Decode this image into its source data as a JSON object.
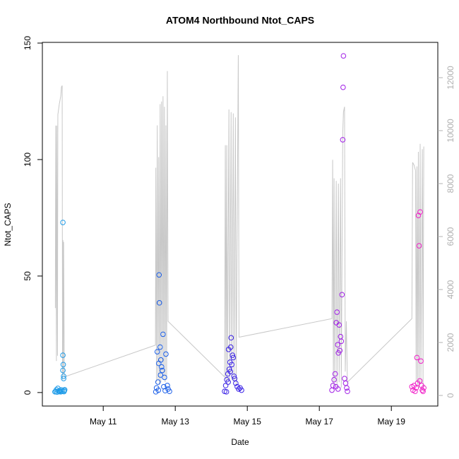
{
  "chart_data": {
    "type": "scatter",
    "title": "ATOM4 Northbound Ntot_CAPS",
    "x_label": "Date",
    "y_label": "Ntot_CAPS",
    "xlim": [
      9.31,
      20.29
    ],
    "xticks": [
      {
        "value": 11,
        "label": "May 11"
      },
      {
        "value": 13,
        "label": "May 13"
      },
      {
        "value": 15,
        "label": "May 15"
      },
      {
        "value": 17,
        "label": "May 17"
      },
      {
        "value": 19,
        "label": "May 19"
      }
    ],
    "ylim": [
      -5.8,
      150.3
    ],
    "yticks": [
      0,
      50,
      100,
      150
    ],
    "y2lim": [
      -400,
      13333
    ],
    "y2ticks": [
      0,
      2000,
      4000,
      6000,
      8000,
      10000,
      12000
    ],
    "y2tick_color": "#b0b0b0",
    "series": [
      {
        "type": "line",
        "axis": "y2",
        "color": "#c8c8c8",
        "x": [
          9.67,
          9.68,
          9.7,
          9.71,
          9.73,
          9.74,
          9.78,
          9.82,
          9.84,
          9.86,
          9.87,
          9.88,
          9.89,
          9.9,
          9.92,
          12.45,
          12.46,
          12.48,
          12.5,
          12.52,
          12.54,
          12.56,
          12.58,
          12.6,
          12.62,
          12.64,
          12.66,
          12.68,
          12.7,
          12.72,
          12.74,
          12.76,
          12.78,
          12.8,
          14.37,
          14.39,
          14.41,
          14.43,
          14.45,
          14.49,
          14.51,
          14.55,
          14.57,
          14.61,
          14.63,
          14.67,
          14.69,
          14.75,
          14.77,
          17.35,
          17.37,
          17.39,
          17.41,
          17.43,
          17.47,
          17.49,
          17.53,
          17.55,
          17.59,
          17.61,
          17.65,
          17.67,
          17.7,
          17.72,
          17.75,
          17.78,
          19.57,
          19.59,
          19.63,
          19.67,
          19.69,
          19.71,
          19.73,
          19.75,
          19.77,
          19.8,
          19.82,
          19.86,
          19.88,
          19.9
        ],
        "values": [
          3300,
          10190,
          1300,
          10190,
          1500,
          10600,
          11000,
          11300,
          11650,
          11700,
          600,
          5870,
          800,
          5800,
          700,
          1900,
          8600,
          500,
          10200,
          600,
          9000,
          400,
          11000,
          500,
          11100,
          700,
          11300,
          600,
          10900,
          500,
          10200,
          600,
          12250,
          2800,
          700,
          9450,
          400,
          9450,
          600,
          10800,
          500,
          10700,
          600,
          10650,
          500,
          10500,
          400,
          12850,
          2200,
          2900,
          8900,
          400,
          8200,
          500,
          8100,
          300,
          8000,
          500,
          8200,
          300,
          9900,
          10700,
          10900,
          900,
          2800,
          500,
          2900,
          8800,
          8700,
          8500,
          500,
          8650,
          400,
          9200,
          300,
          9500,
          500,
          9300,
          300,
          9400
        ]
      },
      {
        "type": "scatter",
        "color": "#1e9be8",
        "x": [
          9.66,
          9.68,
          9.7,
          9.72,
          9.74,
          9.76,
          9.78,
          9.8,
          9.82,
          9.84,
          9.86,
          9.88,
          9.88,
          9.89,
          9.88,
          9.9,
          9.9,
          9.91,
          9.92,
          9.93
        ],
        "values": [
          0.3,
          0.5,
          1.2,
          0.2,
          1.8,
          0.6,
          0.4,
          0.9,
          0.3,
          1.1,
          0.5,
          73,
          16,
          12,
          9.5,
          7,
          6,
          0.4,
          0.8,
          1.2
        ]
      },
      {
        "type": "scatter",
        "color": "#1a5ee8",
        "x": [
          12.46,
          12.5,
          12.52,
          12.54,
          12.55,
          12.56,
          12.58,
          12.6,
          12.62,
          12.64,
          12.66,
          12.7,
          12.74,
          12.78,
          12.84,
          12.48,
          12.53,
          12.59,
          12.68,
          12.72,
          12.8
        ],
        "values": [
          0.3,
          17.5,
          4.5,
          12.5,
          50.5,
          38.5,
          19.5,
          14,
          11,
          9.5,
          25,
          6.5,
          16.5,
          3,
          0.5,
          2,
          1,
          7.5,
          2.5,
          0.8,
          1.5
        ]
      },
      {
        "type": "scatter",
        "color": "#3a22e6",
        "x": [
          14.37,
          14.4,
          14.43,
          14.46,
          14.48,
          14.5,
          14.52,
          14.54,
          14.55,
          14.57,
          14.59,
          14.61,
          14.63,
          14.65,
          14.68,
          14.72,
          14.76,
          14.8,
          14.84,
          14.42,
          14.47,
          14.53
        ],
        "values": [
          0.5,
          3,
          5.5,
          8,
          18.5,
          10,
          13,
          19.5,
          23.5,
          12,
          16,
          15,
          7,
          6,
          4,
          2.5,
          1.5,
          2,
          1,
          0.3,
          4.5,
          9
        ]
      },
      {
        "type": "scatter",
        "color": "#a01ee6",
        "x": [
          17.35,
          17.38,
          17.41,
          17.44,
          17.47,
          17.49,
          17.51,
          17.53,
          17.55,
          17.57,
          17.59,
          17.61,
          17.63,
          17.65,
          17.66,
          17.67,
          17.7,
          17.73,
          17.76,
          17.78,
          17.46,
          17.52
        ],
        "values": [
          1,
          3,
          5.5,
          8,
          30,
          34.5,
          20.5,
          17,
          29,
          18,
          24,
          22,
          42,
          108.5,
          131,
          144.5,
          6,
          4,
          2,
          0.5,
          2.5,
          1.5
        ]
      },
      {
        "type": "scatter",
        "color": "#f01ec8",
        "x": [
          19.57,
          19.6,
          19.63,
          19.66,
          19.69,
          19.71,
          19.73,
          19.75,
          19.77,
          19.79,
          19.8,
          19.82,
          19.84,
          19.86,
          19.88,
          19.9
        ],
        "values": [
          2.5,
          1,
          3,
          0.5,
          2,
          15,
          4,
          76,
          63,
          5,
          77.5,
          13.5,
          3,
          1,
          0.5,
          2
        ]
      }
    ]
  }
}
